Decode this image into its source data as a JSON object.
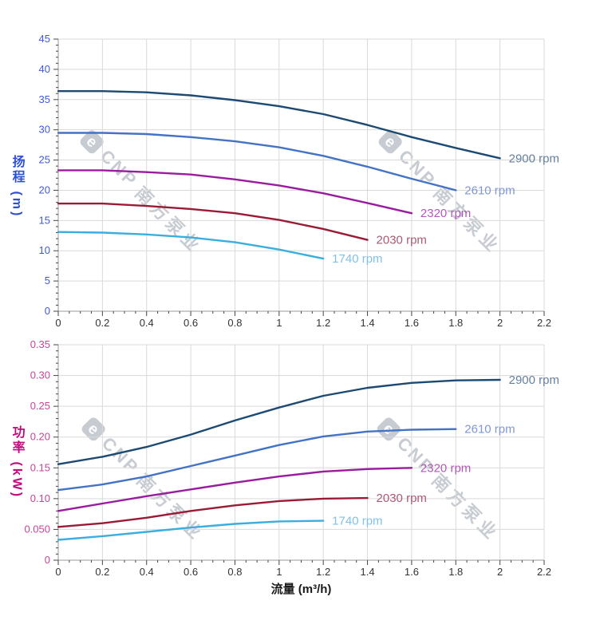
{
  "watermark": {
    "logo_letter": "e",
    "brand": "CNP",
    "company": "南方泵业",
    "color": "#c7cbd2"
  },
  "axes": {
    "head_title": "扬程 (m)",
    "power_title": "功率 (kW)",
    "flow_title": "流量 (m³/h)"
  },
  "colors": {
    "grid": "#d9d9d9",
    "spine": "#999999",
    "tick_mark": "#444444",
    "x_tick_label": "#333333",
    "head_tick_label": "#4059d6",
    "power_tick_label": "#c94399"
  },
  "chart_data": [
    {
      "type": "line",
      "name": "head-curves",
      "title": "",
      "xlabel": "流量 (m³/h)",
      "ylabel": "扬程 (m)",
      "xlim": [
        0,
        2.2
      ],
      "ylim": [
        0,
        45
      ],
      "grid": true,
      "legend_position": "end-of-line",
      "xtick_step": 0.2,
      "xminor_step": 0.05,
      "ytick_step": 5,
      "yminor_step": 1,
      "xtick_labels": [
        "0",
        "0.2",
        "0.4",
        "0.6",
        "0.8",
        "1",
        "1.2",
        "1.4",
        "1.6",
        "1.8",
        "2",
        "2.2"
      ],
      "ytick_labels": [
        "0",
        "5",
        "10",
        "15",
        "20",
        "25",
        "30",
        "35",
        "40",
        "45"
      ],
      "tick_label_color": "#4059d6",
      "series": [
        {
          "name": "2900 rpm",
          "color": "#1c4a72",
          "label_color": "#64809f",
          "x": [
            0,
            0.2,
            0.4,
            0.6,
            0.8,
            1.0,
            1.2,
            1.4,
            1.6,
            1.8,
            2.0
          ],
          "y": [
            36.4,
            36.4,
            36.2,
            35.7,
            34.9,
            33.9,
            32.6,
            30.8,
            28.8,
            27.0,
            25.3
          ]
        },
        {
          "name": "2610 rpm",
          "color": "#4472c4",
          "label_color": "#7f98d0",
          "x": [
            0,
            0.2,
            0.4,
            0.6,
            0.8,
            1.0,
            1.2,
            1.4,
            1.6,
            1.8
          ],
          "y": [
            29.5,
            29.5,
            29.3,
            28.8,
            28.1,
            27.1,
            25.7,
            23.9,
            21.9,
            20.0
          ]
        },
        {
          "name": "2320 rpm",
          "color": "#9a1c9e",
          "label_color": "#b05ab8",
          "x": [
            0,
            0.2,
            0.4,
            0.6,
            0.8,
            1.0,
            1.2,
            1.4,
            1.6
          ],
          "y": [
            23.3,
            23.3,
            23.0,
            22.6,
            21.8,
            20.8,
            19.5,
            17.9,
            16.2
          ]
        },
        {
          "name": "2030 rpm",
          "color": "#9a1b35",
          "label_color": "#ab5a72",
          "x": [
            0,
            0.2,
            0.4,
            0.6,
            0.8,
            1.0,
            1.2,
            1.4
          ],
          "y": [
            17.8,
            17.8,
            17.4,
            16.9,
            16.2,
            15.1,
            13.6,
            11.8
          ]
        },
        {
          "name": "1740 rpm",
          "color": "#3aaede",
          "label_color": "#7fc2ea",
          "x": [
            0,
            0.2,
            0.4,
            0.6,
            0.8,
            1.0,
            1.2
          ],
          "y": [
            13.1,
            13.0,
            12.7,
            12.2,
            11.4,
            10.2,
            8.7
          ]
        }
      ]
    },
    {
      "type": "line",
      "name": "power-curves",
      "title": "",
      "xlabel": "流量 (m³/h)",
      "ylabel": "功率 (kW)",
      "xlim": [
        0,
        2.2
      ],
      "ylim": [
        0,
        0.35
      ],
      "grid": true,
      "legend_position": "end-of-line",
      "xtick_step": 0.2,
      "xminor_step": 0.05,
      "ytick_step": 0.05,
      "yminor_step": 0.01,
      "xtick_labels": [
        "0",
        "0.2",
        "0.4",
        "0.6",
        "0.8",
        "1",
        "1.2",
        "1.4",
        "1.6",
        "1.8",
        "2",
        "2.2"
      ],
      "ytick_labels": [
        "0",
        "0.050",
        "0.10",
        "0.15",
        "0.20",
        "0.25",
        "0.30",
        "0.35"
      ],
      "tick_label_color": "#c94399",
      "series": [
        {
          "name": "2900 rpm",
          "color": "#1c4a72",
          "label_color": "#64809f",
          "x": [
            0,
            0.2,
            0.4,
            0.6,
            0.8,
            1.0,
            1.2,
            1.4,
            1.6,
            1.8,
            2.0
          ],
          "y": [
            0.156,
            0.168,
            0.184,
            0.204,
            0.227,
            0.248,
            0.267,
            0.28,
            0.288,
            0.292,
            0.293
          ]
        },
        {
          "name": "2610 rpm",
          "color": "#4472c4",
          "label_color": "#7f98d0",
          "x": [
            0,
            0.2,
            0.4,
            0.6,
            0.8,
            1.0,
            1.2,
            1.4,
            1.6,
            1.8
          ],
          "y": [
            0.114,
            0.123,
            0.136,
            0.153,
            0.17,
            0.187,
            0.201,
            0.209,
            0.212,
            0.213
          ]
        },
        {
          "name": "2320 rpm",
          "color": "#9a1c9e",
          "label_color": "#b05ab8",
          "x": [
            0,
            0.2,
            0.4,
            0.6,
            0.8,
            1.0,
            1.2,
            1.4,
            1.6
          ],
          "y": [
            0.08,
            0.092,
            0.104,
            0.115,
            0.126,
            0.136,
            0.144,
            0.148,
            0.15
          ]
        },
        {
          "name": "2030 rpm",
          "color": "#9a1b35",
          "label_color": "#ab5a72",
          "x": [
            0,
            0.2,
            0.4,
            0.6,
            0.8,
            1.0,
            1.2,
            1.4
          ],
          "y": [
            0.054,
            0.06,
            0.069,
            0.08,
            0.089,
            0.096,
            0.1,
            0.101
          ]
        },
        {
          "name": "1740 rpm",
          "color": "#3aaede",
          "label_color": "#7fc2ea",
          "x": [
            0,
            0.2,
            0.4,
            0.6,
            0.8,
            1.0,
            1.2
          ],
          "y": [
            0.033,
            0.039,
            0.046,
            0.053,
            0.059,
            0.063,
            0.064
          ]
        }
      ]
    }
  ]
}
